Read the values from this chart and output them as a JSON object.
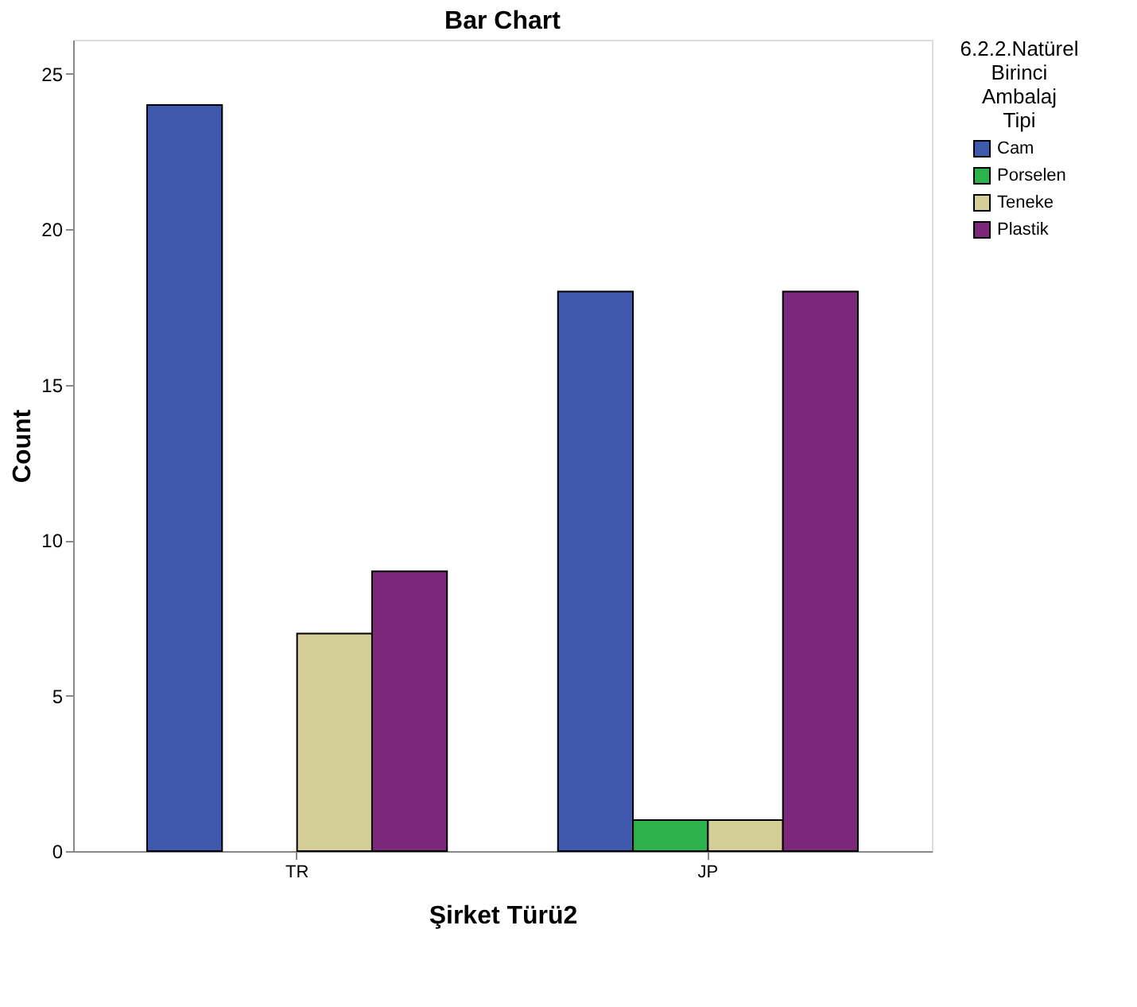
{
  "chart_data": {
    "type": "bar",
    "title": "Bar Chart",
    "xlabel": "Şirket Türü2",
    "ylabel": "Count",
    "legend_title": "6.2.2.Natürel Birinci Ambalaj Tipi",
    "categories": [
      "TR",
      "JP"
    ],
    "series": [
      {
        "name": "Cam",
        "color": "#3e58ac",
        "values": [
          24,
          18
        ]
      },
      {
        "name": "Porselen",
        "color": "#2bb24a",
        "values": [
          null,
          1
        ]
      },
      {
        "name": "Teneke",
        "color": "#d4cf97",
        "values": [
          7,
          1
        ]
      },
      {
        "name": "Plastik",
        "color": "#7b287a",
        "values": [
          9,
          18
        ]
      }
    ],
    "ylim": [
      0,
      26.1
    ],
    "yticks": [
      0,
      5,
      10,
      15,
      20,
      25
    ],
    "grid": false,
    "legend": "top right"
  }
}
